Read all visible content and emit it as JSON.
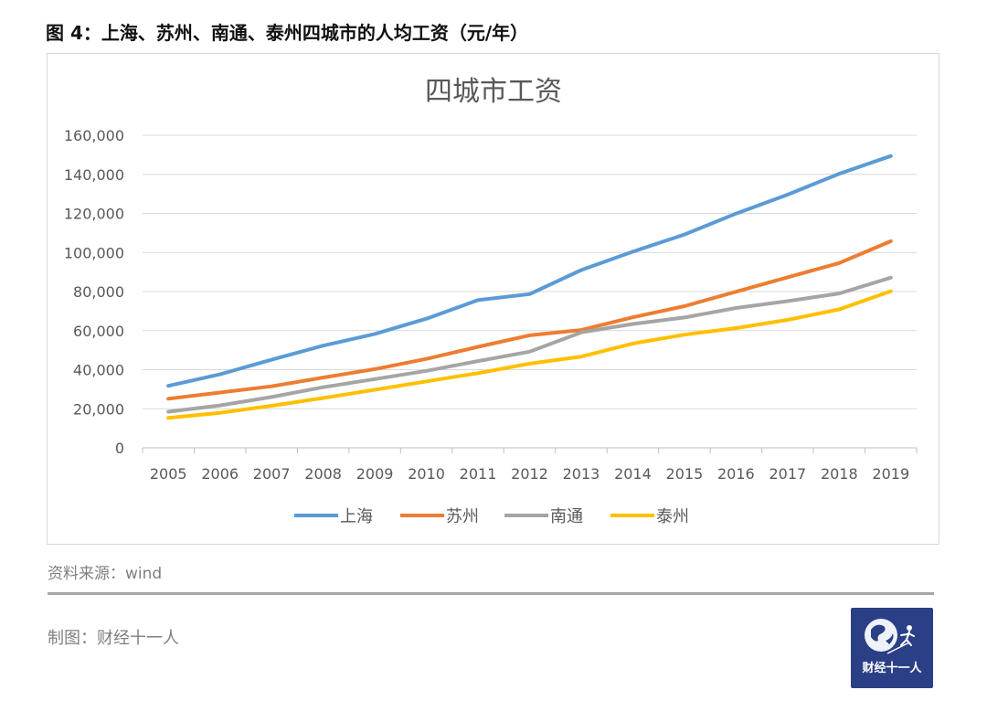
{
  "figure_title": "图 4：上海、苏州、南通、泰州四城市的人均工资（元/年）",
  "source_text": "资料来源：wind",
  "maker_text": "制图：财经十一人",
  "logo": {
    "icon": "globe-runner-logo-icon",
    "text": "财经十一人",
    "background": "#2a3f86"
  },
  "chart_data": {
    "type": "line",
    "title": "四城市工资",
    "xlabel": "",
    "ylabel": "",
    "ylim": [
      0,
      160000
    ],
    "grid": true,
    "legend_position": "bottom",
    "y_ticks": [
      0,
      20000,
      40000,
      60000,
      80000,
      100000,
      120000,
      140000,
      160000
    ],
    "y_tick_labels": [
      "0",
      "20,000",
      "40,000",
      "60,000",
      "80,000",
      "100,000",
      "120,000",
      "140,000",
      "160,000"
    ],
    "categories": [
      "2005",
      "2006",
      "2007",
      "2008",
      "2009",
      "2010",
      "2011",
      "2012",
      "2013",
      "2014",
      "2015",
      "2016",
      "2017",
      "2018",
      "2019"
    ],
    "series": [
      {
        "name": "上海",
        "color": "#5b9bd5",
        "values": [
          31700,
          37600,
          45100,
          52300,
          58300,
          66100,
          75600,
          78700,
          91000,
          100400,
          109200,
          119900,
          129600,
          140300,
          149400
        ]
      },
      {
        "name": "苏州",
        "color": "#ed7d31",
        "values": [
          25100,
          28300,
          31500,
          36000,
          40300,
          45500,
          51700,
          57600,
          60300,
          66800,
          72500,
          79900,
          87300,
          94600,
          105800
        ]
      },
      {
        "name": "南通",
        "color": "#a5a5a5",
        "values": [
          18500,
          21700,
          26000,
          31000,
          35200,
          39400,
          44400,
          49200,
          59100,
          63400,
          66700,
          71600,
          75100,
          79000,
          87100
        ]
      },
      {
        "name": "泰州",
        "color": "#ffc000",
        "values": [
          15300,
          17900,
          21500,
          25500,
          29700,
          34000,
          38200,
          43100,
          46700,
          53400,
          57900,
          61300,
          65500,
          70900,
          80200
        ]
      }
    ]
  }
}
